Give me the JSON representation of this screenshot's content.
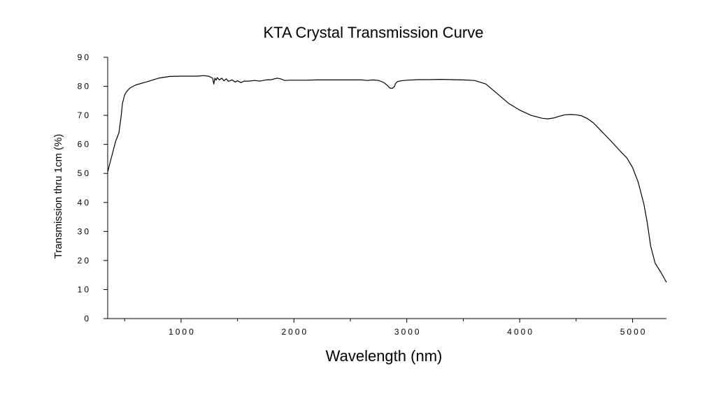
{
  "chart_data": {
    "type": "line",
    "title": "KTA Crystal Transmission Curve",
    "xlabel": "Wavelength (nm)",
    "ylabel": "Transmission thru 1cm (%)",
    "xlim": [
      350,
      5300
    ],
    "ylim": [
      0,
      90
    ],
    "x_ticks": [
      {
        "value": 1000,
        "label": "1000"
      },
      {
        "value": 2000,
        "label": "2000"
      },
      {
        "value": 3000,
        "label": "3000"
      },
      {
        "value": 4000,
        "label": "4000"
      },
      {
        "value": 5000,
        "label": "5000"
      }
    ],
    "x_minor_ticks": [
      500,
      1500,
      2500,
      3500,
      4500
    ],
    "y_ticks": [
      {
        "value": 0,
        "label": "0"
      },
      {
        "value": 10,
        "label": "10"
      },
      {
        "value": 20,
        "label": "20"
      },
      {
        "value": 30,
        "label": "30"
      },
      {
        "value": 40,
        "label": "40"
      },
      {
        "value": 50,
        "label": "50"
      },
      {
        "value": 60,
        "label": "60"
      },
      {
        "value": 70,
        "label": "70"
      },
      {
        "value": 80,
        "label": "80"
      },
      {
        "value": 90,
        "label": "90"
      }
    ],
    "grid": false,
    "legend": "none",
    "line_color": "#000000",
    "series": [
      {
        "x": [
          350,
          380,
          420,
          450,
          470,
          480,
          500,
          520,
          550,
          600,
          700,
          800,
          900,
          1000,
          1100,
          1150,
          1200,
          1250,
          1280,
          1290,
          1300,
          1310,
          1320,
          1340,
          1360,
          1380,
          1400,
          1420,
          1450,
          1480,
          1500,
          1530,
          1560,
          1600,
          1650,
          1700,
          1750,
          1800,
          1850,
          1880,
          1900,
          1920,
          1950,
          2000,
          2100,
          2200,
          2300,
          2400,
          2500,
          2600,
          2650,
          2700,
          2750,
          2780,
          2800,
          2830,
          2850,
          2870,
          2880,
          2890,
          2900,
          2920,
          2950,
          3000,
          3100,
          3200,
          3300,
          3400,
          3500,
          3600,
          3700,
          3800,
          3900,
          4000,
          4100,
          4200,
          4250,
          4300,
          4350,
          4400,
          4450,
          4500,
          4550,
          4600,
          4650,
          4700,
          4800,
          4900,
          4950,
          5000,
          5050,
          5100,
          5130,
          5160,
          5200,
          5250,
          5300
        ],
        "y": [
          50.5,
          55,
          61,
          64,
          70,
          74,
          77,
          78.3,
          79.5,
          80.5,
          81.6,
          82.8,
          83.4,
          83.5,
          83.5,
          83.5,
          83.7,
          83.4,
          82.8,
          80.8,
          82.8,
          82.1,
          83,
          82.2,
          82.8,
          81.9,
          82.6,
          81.7,
          82.2,
          81.5,
          81.9,
          81.3,
          81.8,
          81.8,
          82,
          81.8,
          82.2,
          82.3,
          82.8,
          82.6,
          82.3,
          82,
          82.1,
          82.1,
          82.1,
          82.2,
          82.2,
          82.2,
          82.2,
          82.2,
          82,
          82.2,
          82,
          81.6,
          81.2,
          80.2,
          79.4,
          79.3,
          79.6,
          79.9,
          81,
          81.7,
          81.9,
          82.1,
          82.3,
          82.3,
          82.4,
          82.3,
          82.2,
          82,
          80.8,
          77.5,
          74.2,
          71.8,
          70,
          69,
          68.8,
          69.1,
          69.7,
          70.2,
          70.3,
          70.2,
          69.8,
          68.9,
          67.5,
          65.5,
          61.5,
          57.3,
          55.3,
          52,
          47,
          39.5,
          33,
          25,
          19,
          16,
          12.5
        ]
      }
    ]
  }
}
